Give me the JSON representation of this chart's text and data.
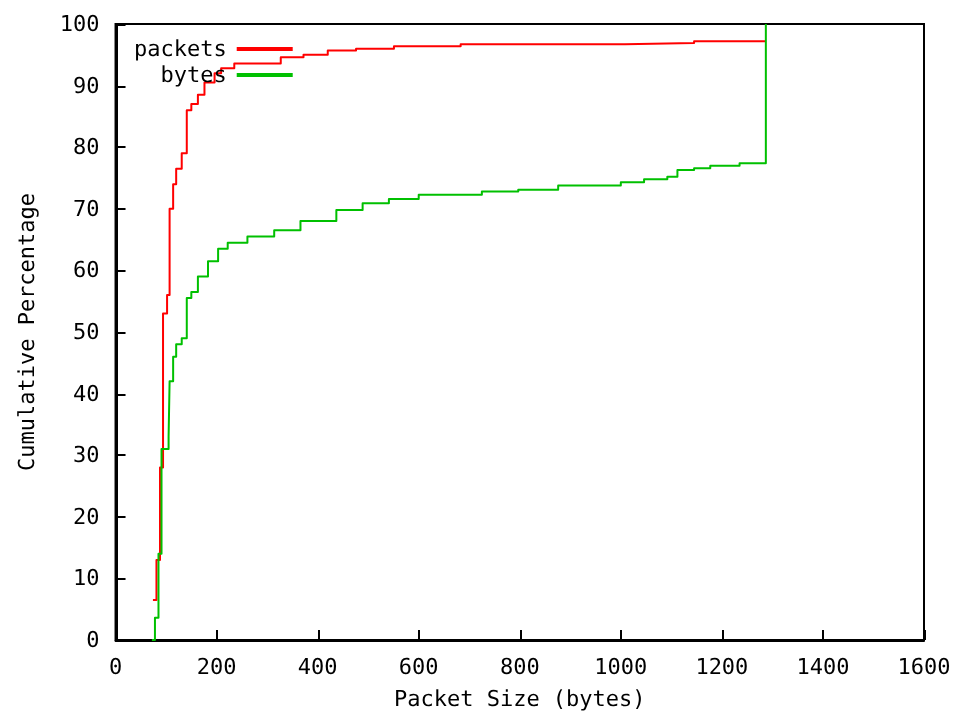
{
  "chart_data": {
    "type": "step",
    "xlabel": "Packet Size (bytes)",
    "ylabel": "Cumulative Percentage",
    "xlim": [
      0,
      1600
    ],
    "xticks": [
      0,
      200,
      400,
      600,
      800,
      1000,
      1200,
      1400,
      1600
    ],
    "ylim": [
      0,
      100
    ],
    "yticks": [
      0,
      10,
      20,
      30,
      40,
      50,
      60,
      70,
      80,
      90,
      100
    ],
    "legend": "top left",
    "grid": false,
    "marker": "none",
    "line_style": "solid",
    "series": [
      {
        "name": "packets",
        "color": "#ff0000",
        "x": [
          74,
          81,
          88,
          94,
          102,
          107,
          114,
          120,
          131,
          141,
          150,
          163,
          176,
          196,
          209,
          235,
          327,
          372,
          420,
          476,
          551,
          683,
          1008,
          1145,
          1287
        ],
        "values": [
          6.5,
          13,
          28,
          53,
          56,
          70,
          74,
          76.5,
          79,
          86,
          87,
          88.5,
          90.5,
          92,
          92.8,
          93.6,
          94.6,
          95,
          95.7,
          96,
          96.4,
          96.7,
          96.9,
          97.2,
          97.2
        ]
      },
      {
        "name": "bytes",
        "color": "#00c000",
        "x": [
          72,
          78,
          85,
          91,
          105,
          107,
          114,
          120,
          131,
          141,
          150,
          163,
          183,
          203,
          222,
          261,
          314,
          366,
          437,
          489,
          541,
          600,
          725,
          797,
          876,
          1000,
          1046,
          1092,
          1112,
          1145,
          1177,
          1235,
          1287
        ],
        "values": [
          0,
          3.6,
          14,
          31,
          33,
          42,
          46,
          48,
          49,
          55.5,
          56.5,
          59,
          61.5,
          63.5,
          64.5,
          65.5,
          66.5,
          68,
          69.8,
          70.9,
          71.6,
          72.3,
          72.8,
          73.1,
          73.8,
          74.3,
          74.8,
          75.2,
          76.3,
          76.6,
          77,
          77.4,
          100
        ]
      }
    ]
  }
}
